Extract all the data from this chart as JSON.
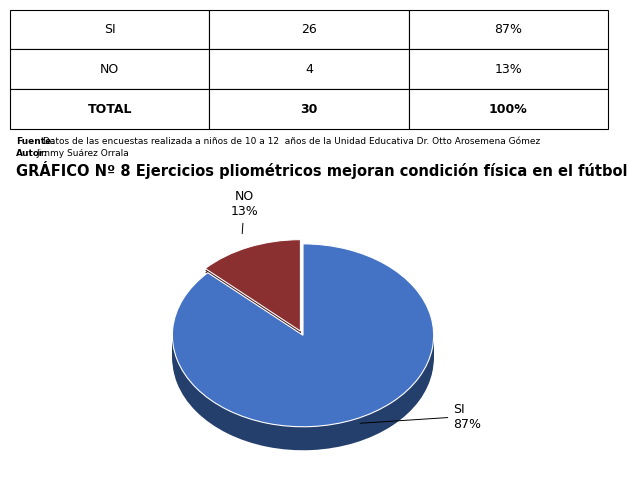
{
  "title": "GRÁFICO Nº 8 Ejercicios pliométricos mejoran condición física en el fútbol",
  "title_fontsize": 10.5,
  "title_fontweight": "bold",
  "slices": [
    87,
    13
  ],
  "labels": [
    "SI",
    "NO"
  ],
  "colors": [
    "#4472C4",
    "#8B3030"
  ],
  "si_color": "#4472C4",
  "no_color": "#9B3535",
  "shadow_color_si": "#2a4a7f",
  "shadow_color_no": "#5a1a1a",
  "explode": [
    0,
    0.05
  ],
  "table_data": [
    [
      "SI",
      "26",
      "87%"
    ],
    [
      "NO",
      "4",
      "13%"
    ],
    [
      "TOTAL",
      "30",
      "100%"
    ]
  ],
  "footnote1": "Fuente: Datos de las encuestas realizada a niños de 10 a 12  años de la Unidad Educativa Dr. Otto Arosemena Gómez",
  "footnote2": "Autor: Jimmy Suárez Orrala",
  "startangle": 90
}
